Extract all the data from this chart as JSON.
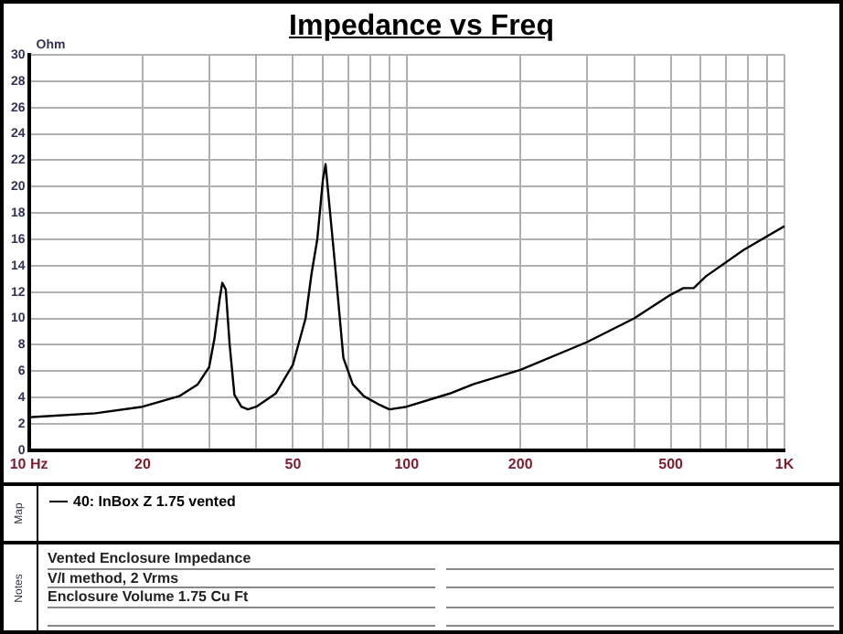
{
  "chart_data": {
    "type": "line",
    "title": "Impedance vs Freq",
    "ylabel": "Ohm",
    "x": [
      10,
      15,
      20,
      25,
      28,
      30,
      31,
      32,
      32.5,
      33.2,
      34,
      35,
      36.5,
      38,
      40,
      45,
      50,
      54,
      56,
      58,
      60,
      61,
      62,
      64.5,
      68,
      72,
      77,
      84,
      90,
      100,
      130,
      150,
      200,
      300,
      400,
      500,
      540,
      575,
      620,
      780,
      1000
    ],
    "series": [
      {
        "name": "40: InBox Z 1.75 vented",
        "color": "#000000",
        "values": [
          2.5,
          2.8,
          3.3,
          4.1,
          5,
          6.3,
          8.5,
          11.5,
          12.7,
          12.2,
          8,
          4.2,
          3.3,
          3.1,
          3.3,
          4.3,
          6.5,
          10,
          13.4,
          16,
          20.5,
          21.7,
          19.5,
          14.3,
          7,
          5,
          4.1,
          3.5,
          3.1,
          3.3,
          4.3,
          5,
          6.1,
          8.2,
          10,
          11.8,
          12.3,
          12.3,
          13.2,
          15.2,
          17
        ]
      }
    ],
    "log": "x",
    "xlim": [
      10,
      1000
    ],
    "xticks": [
      {
        "value": 10,
        "label": "10 Hz"
      },
      20,
      {
        "value": 30,
        "label": null
      },
      {
        "value": 40,
        "label": null
      },
      50,
      {
        "value": 60,
        "label": null
      },
      {
        "value": 70,
        "label": null
      },
      {
        "value": 80,
        "label": null
      },
      {
        "value": 90,
        "label": null
      },
      100,
      200,
      {
        "value": 300,
        "label": null
      },
      {
        "value": 400,
        "label": null
      },
      500,
      {
        "value": 600,
        "label": null
      },
      {
        "value": 700,
        "label": null
      },
      {
        "value": 800,
        "label": null
      },
      {
        "value": 900,
        "label": null
      },
      {
        "value": 1000,
        "label": "1K"
      }
    ],
    "ylim": [
      0,
      30
    ],
    "yticks": [
      0,
      2,
      4,
      6,
      8,
      10,
      12,
      14,
      16,
      18,
      20,
      22,
      24,
      26,
      28,
      30
    ],
    "grid": true,
    "legend": "bottom",
    "annotations": [
      "Map",
      "Notes",
      "Vented Enclosure Impedance",
      "V/I method, 2 Vrms",
      "Enclosure Volume 1.75 Cu Ft"
    ]
  }
}
